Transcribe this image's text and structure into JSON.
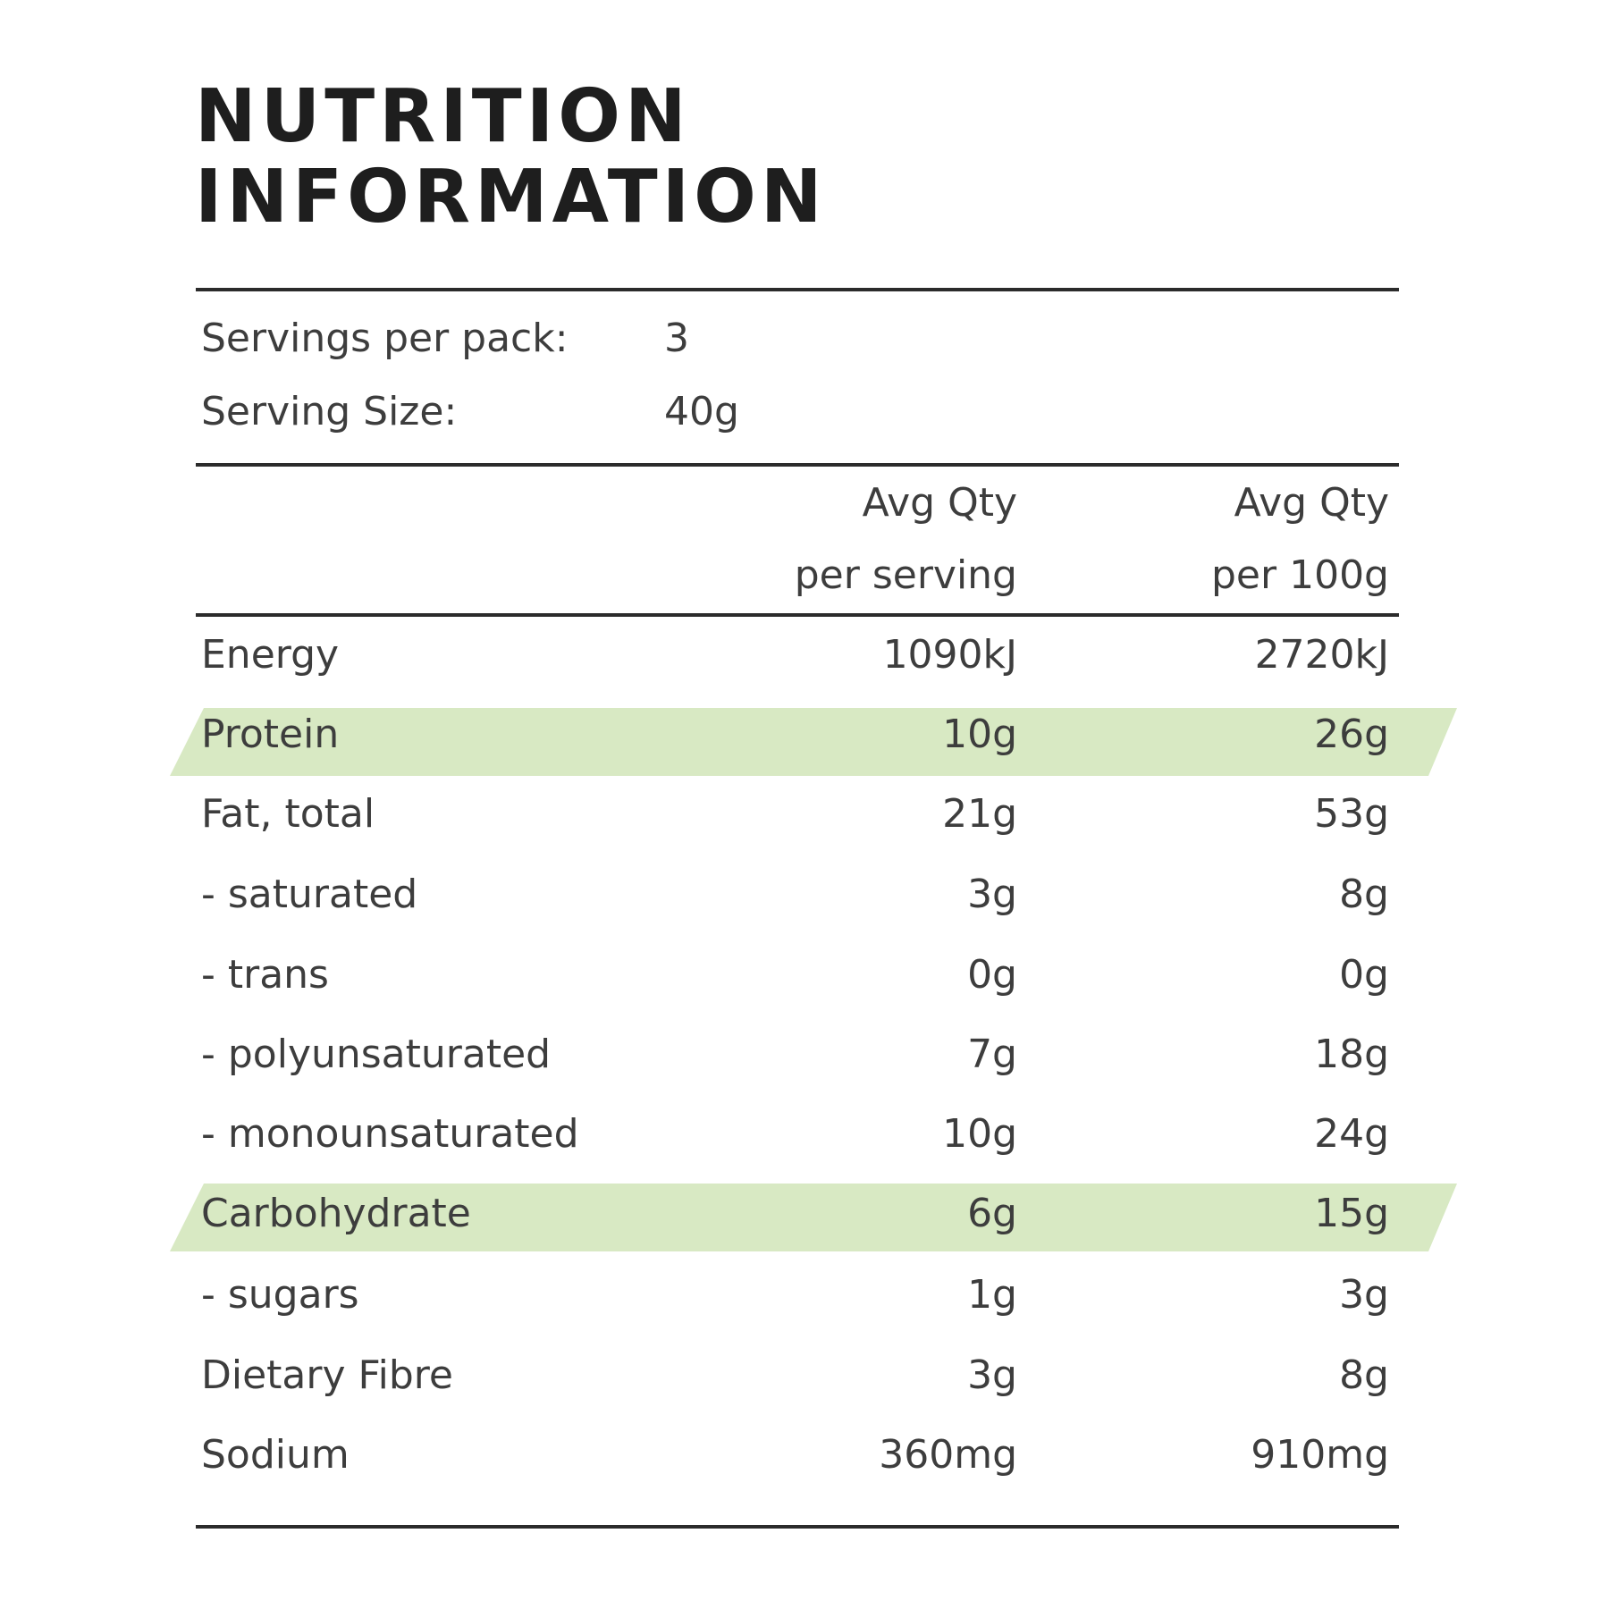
{
  "title": {
    "line1": "NUTRITION",
    "line2": "INFORMATION"
  },
  "serving": {
    "per_pack_label": "Servings per pack:",
    "per_pack_value": "3",
    "size_label": "Serving Size:",
    "size_value": "40g"
  },
  "columns": {
    "col1_line1": "Avg Qty",
    "col1_line2": "per serving",
    "col2_line1": "Avg Qty",
    "col2_line2": "per 100g"
  },
  "highlight_color": "#d8e9c3",
  "rows": [
    {
      "label": "Energy",
      "per_serving": "1090kJ",
      "per_100g": "2720kJ",
      "highlighted": false
    },
    {
      "label": "Protein",
      "per_serving": "10g",
      "per_100g": "26g",
      "highlighted": true
    },
    {
      "label": "Fat, total",
      "per_serving": "21g",
      "per_100g": "53g",
      "highlighted": false
    },
    {
      "label": "- saturated",
      "per_serving": "3g",
      "per_100g": "8g",
      "highlighted": false
    },
    {
      "label": "- trans",
      "per_serving": "0g",
      "per_100g": "0g",
      "highlighted": false
    },
    {
      "label": "- polyunsaturated",
      "per_serving": "7g",
      "per_100g": "18g",
      "highlighted": false
    },
    {
      "label": "- monounsaturated",
      "per_serving": "10g",
      "per_100g": "24g",
      "highlighted": false
    },
    {
      "label": "Carbohydrate",
      "per_serving": "6g",
      "per_100g": "15g",
      "highlighted": true
    },
    {
      "label": "- sugars",
      "per_serving": "1g",
      "per_100g": "3g",
      "highlighted": false
    },
    {
      "label": "Dietary Fibre",
      "per_serving": "3g",
      "per_100g": "8g",
      "highlighted": false
    },
    {
      "label": "Sodium",
      "per_serving": "360mg",
      "per_100g": "910mg",
      "highlighted": false
    }
  ]
}
